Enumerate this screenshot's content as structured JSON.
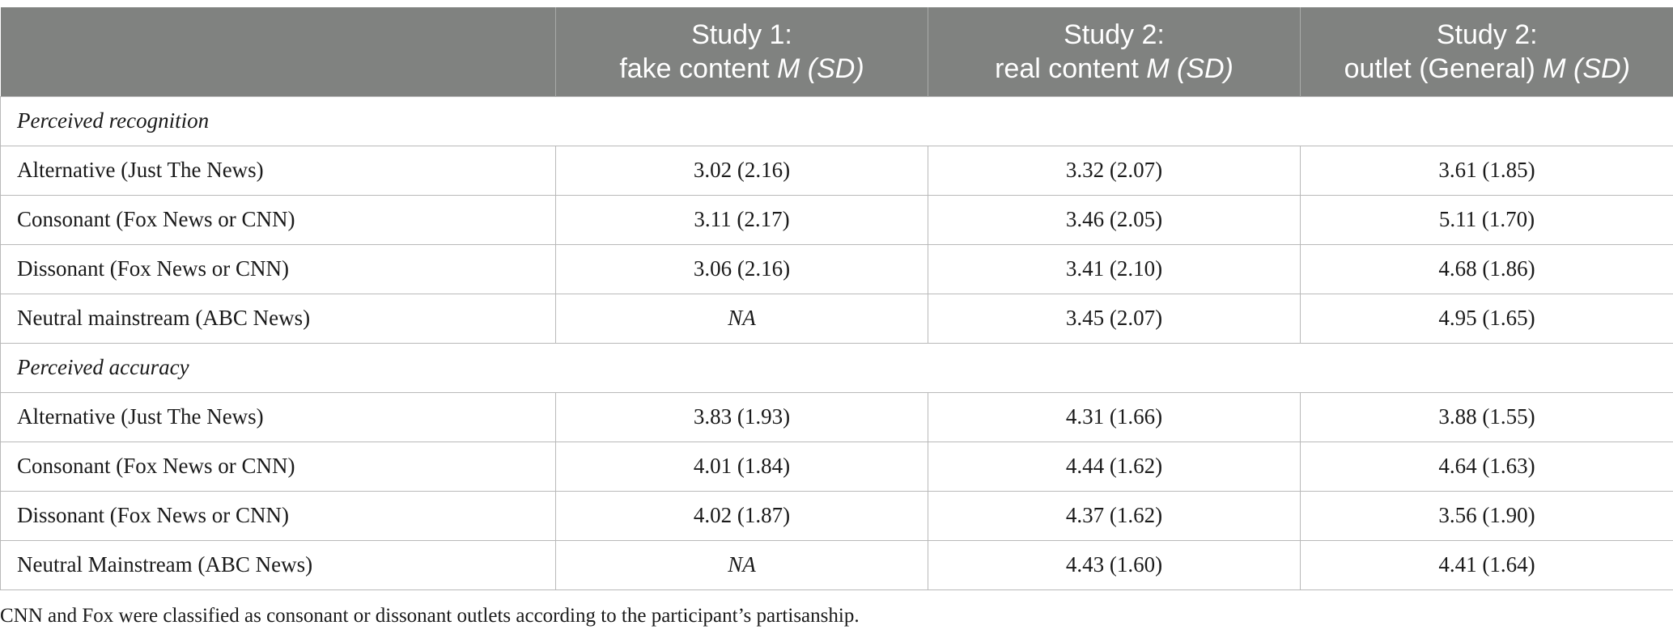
{
  "header": {
    "col0": "",
    "col1": {
      "line1": "Study 1:",
      "line2_text": "fake content ",
      "line2_stat": "M (SD)"
    },
    "col2": {
      "line1": "Study 2:",
      "line2_text": "real content ",
      "line2_stat": "M (SD)"
    },
    "col3": {
      "line1": "Study 2:",
      "line2_text": "outlet (General) ",
      "line2_stat": "M (SD)"
    }
  },
  "sections": [
    {
      "title": "Perceived recognition",
      "rows": [
        {
          "label": "Alternative (Just The News)",
          "v1": "3.02 (2.16)",
          "v2": "3.32 (2.07)",
          "v3": "3.61 (1.85)"
        },
        {
          "label": "Consonant (Fox News or CNN)",
          "v1": "3.11 (2.17)",
          "v2": "3.46 (2.05)",
          "v3": "5.11 (1.70)"
        },
        {
          "label": "Dissonant (Fox News or CNN)",
          "v1": "3.06 (2.16)",
          "v2": "3.41 (2.10)",
          "v3": "4.68 (1.86)"
        },
        {
          "label": "Neutral mainstream (ABC News)",
          "v1": "NA",
          "v2": "3.45 (2.07)",
          "v3": "4.95 (1.65)"
        }
      ]
    },
    {
      "title": "Perceived accuracy",
      "rows": [
        {
          "label": "Alternative (Just The News)",
          "v1": "3.83 (1.93)",
          "v2": "4.31 (1.66)",
          "v3": "3.88 (1.55)"
        },
        {
          "label": "Consonant (Fox News or CNN)",
          "v1": "4.01 (1.84)",
          "v2": "4.44 (1.62)",
          "v3": "4.64 (1.63)"
        },
        {
          "label": "Dissonant (Fox News or CNN)",
          "v1": "4.02 (1.87)",
          "v2": "4.37 (1.62)",
          "v3": "3.56 (1.90)"
        },
        {
          "label": "Neutral Mainstream (ABC News)",
          "v1": "NA",
          "v2": "4.43 (1.60)",
          "v3": "4.41 (1.64)"
        }
      ]
    }
  ],
  "footnote": "CNN and Fox were classified as consonant or dissonant outlets according to the participant’s partisanship."
}
